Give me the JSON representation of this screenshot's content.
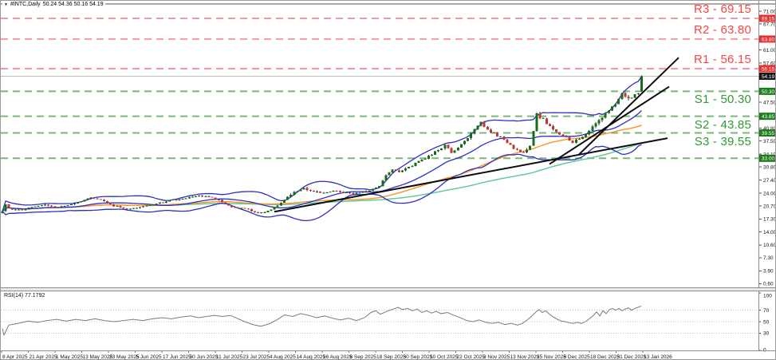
{
  "window": {
    "title_marker": "▼",
    "title_symbol": "#INTC,Daily",
    "title_ohlc": "50.24 54.36 50.16 54.19"
  },
  "colors": {
    "resistance_caption": "#f94545",
    "resistance_dash": "#f59a9a",
    "resistance_badge_bg": "#e53232",
    "support_caption": "#2e9b2e",
    "support_dash": "#79b879",
    "support_badge_bg": "#1d7d1d",
    "current_line": "#bdbdbd",
    "current_badge_bg": "#151515",
    "badge_text": "#ffffff",
    "candle_up": "#176d17",
    "candle_down": "#bf3737",
    "wick": "#3a3a3a",
    "bollinger": "#2e2ec4",
    "ma_fast": "#ff9224",
    "ma_slow": "#5cc795",
    "trendline": "#0d0d0d",
    "rsi_line": "#7a7a7a",
    "rsi_grid": "#c3c3c3",
    "axis_text": "#141414",
    "frame": "#8c8c8c"
  },
  "chart_data": {
    "type": "candlestick",
    "symbol": "#INTC",
    "timeframe": "Daily",
    "title": "#INTC,Daily 50.24 54.36 50.16 54.19",
    "ohlc_current": {
      "open": 50.24,
      "high": 54.36,
      "low": 50.16,
      "close": 54.19
    },
    "ylim": [
      0.6,
      71.0
    ],
    "y_ticks": [
      71.0,
      67.7,
      61.0,
      57.6,
      47.5,
      40.8,
      37.5,
      34.1,
      30.8,
      27.4,
      24.0,
      20.7,
      17.3,
      14.0,
      10.6,
      7.3,
      3.9,
      0.6
    ],
    "x_labels": [
      "8 Apr 2025",
      "21 Apr 2025",
      "1 May 2025",
      "13 May 2025",
      "23 May 2025",
      "5 Jun 2025",
      "17 Jun 2025",
      "30 Jun 2025",
      "11 Jul 2025",
      "23 Jul 2025",
      "4 Aug 2025",
      "14 Aug 2025",
      "26 Aug 2025",
      "8 Sep 2025",
      "18 Sep 2025",
      "30 Sep 2025",
      "10 Oct 2025",
      "22 Oct 2025",
      "3 Nov 2025",
      "13 Nov 2025",
      "25 Nov 2025",
      "8 Dec 2025",
      "18 Dec 2025",
      "31 Dec 2025",
      "13 Jan 2026"
    ],
    "levels": {
      "resistance": [
        {
          "name": "R3",
          "value": 69.15,
          "caption": "R3 - 69.15"
        },
        {
          "name": "R2",
          "value": 63.8,
          "caption": "R2 - 63.80"
        },
        {
          "name": "R1",
          "value": 56.15,
          "caption": "R1 - 56.15"
        }
      ],
      "support": [
        {
          "name": "S1",
          "value": 50.3,
          "caption": "S1 - 50.30"
        },
        {
          "name": "S2",
          "value": 43.85,
          "caption": "S2 - 43.85"
        },
        {
          "name": "S3",
          "value": 39.55,
          "caption": "S3 - 39.55"
        }
      ],
      "support_extra": 33.0,
      "current_price": 54.19
    },
    "bars_total": 196,
    "seed": 9,
    "price_keyframes": [
      [
        0,
        19.4
      ],
      [
        1,
        21.0
      ],
      [
        3,
        19.8
      ],
      [
        6,
        19.6
      ],
      [
        9,
        20.4
      ],
      [
        13,
        21.0
      ],
      [
        16,
        20.1
      ],
      [
        19,
        20.6
      ],
      [
        23,
        21.6
      ],
      [
        27,
        23.0
      ],
      [
        30,
        22.2
      ],
      [
        33,
        21.0
      ],
      [
        38,
        19.9
      ],
      [
        42,
        20.5
      ],
      [
        46,
        21.0
      ],
      [
        50,
        21.9
      ],
      [
        55,
        22.5
      ],
      [
        60,
        23.3
      ],
      [
        64,
        22.9
      ],
      [
        68,
        21.3
      ],
      [
        70,
        20.3
      ],
      [
        74,
        20.0
      ],
      [
        78,
        18.9
      ],
      [
        81,
        19.3
      ],
      [
        84,
        20.8
      ],
      [
        87,
        23.2
      ],
      [
        90,
        24.6
      ],
      [
        92,
        25.3
      ],
      [
        95,
        24.3
      ],
      [
        98,
        24.0
      ],
      [
        101,
        24.7
      ],
      [
        104,
        24.1
      ],
      [
        107,
        23.8
      ],
      [
        110,
        24.3
      ],
      [
        113,
        24.9
      ],
      [
        115,
        25.8
      ],
      [
        117,
        28.6
      ],
      [
        119,
        30.3
      ],
      [
        121,
        29.6
      ],
      [
        124,
        30.8
      ],
      [
        127,
        32.0
      ],
      [
        130,
        33.6
      ],
      [
        133,
        35.2
      ],
      [
        135,
        36.3
      ],
      [
        137,
        34.6
      ],
      [
        139,
        35.5
      ],
      [
        141,
        37.6
      ],
      [
        143,
        39.2
      ],
      [
        145,
        41.3
      ],
      [
        146,
        42.1
      ],
      [
        148,
        40.6
      ],
      [
        150,
        39.3
      ],
      [
        152,
        38.4
      ],
      [
        154,
        37.0
      ],
      [
        156,
        35.6
      ],
      [
        158,
        34.8
      ],
      [
        159,
        34.2
      ],
      [
        161,
        36.5
      ],
      [
        162,
        40.0
      ],
      [
        163,
        44.6
      ],
      [
        164,
        43.6
      ],
      [
        165,
        43.0
      ],
      [
        167,
        41.0
      ],
      [
        169,
        39.6
      ],
      [
        171,
        38.8
      ],
      [
        173,
        37.6
      ],
      [
        174,
        37.2
      ],
      [
        176,
        38.2
      ],
      [
        178,
        39.4
      ],
      [
        180,
        40.9
      ],
      [
        182,
        42.6
      ],
      [
        184,
        44.8
      ],
      [
        186,
        46.4
      ],
      [
        188,
        48.3
      ],
      [
        189,
        49.6
      ],
      [
        190,
        49.0
      ],
      [
        191,
        48.4
      ],
      [
        192,
        48.9
      ],
      [
        193,
        49.3
      ],
      [
        194,
        50.2
      ],
      [
        195,
        54.19
      ]
    ],
    "overlays": {
      "bollinger": {
        "period": 20,
        "deviation": 2
      },
      "ma_fast_period": 45,
      "ma_slow_period": 90
    },
    "trendlines": [
      {
        "points": [
          [
            343,
            19.2
          ],
          [
            836,
            38.2
          ]
        ],
        "width": 2
      },
      {
        "points": [
          [
            688,
            31.5
          ],
          [
            838,
            51.5
          ]
        ],
        "width": 2
      },
      {
        "points": [
          [
            724,
            33.8
          ],
          [
            850,
            59.0
          ]
        ],
        "width": 2
      }
    ],
    "rsi": {
      "label": "RSI(14) 77.1792",
      "period": 14,
      "value": 77.1792,
      "grid_levels": [
        70,
        50,
        30
      ],
      "axis_labels": [
        100,
        70,
        50,
        30,
        0
      ],
      "keyframes": [
        [
          2,
          38
        ],
        [
          4,
          27
        ],
        [
          10,
          44
        ],
        [
          22,
          47
        ],
        [
          34,
          51
        ],
        [
          46,
          49
        ],
        [
          58,
          52
        ],
        [
          70,
          54
        ],
        [
          82,
          51
        ],
        [
          94,
          54
        ],
        [
          106,
          52
        ],
        [
          118,
          55
        ],
        [
          130,
          52
        ],
        [
          142,
          50
        ],
        [
          154,
          52
        ],
        [
          166,
          54
        ],
        [
          178,
          52
        ],
        [
          190,
          55
        ],
        [
          202,
          57
        ],
        [
          214,
          55
        ],
        [
          226,
          58
        ],
        [
          238,
          60
        ],
        [
          248,
          57
        ],
        [
          258,
          59
        ],
        [
          268,
          61
        ],
        [
          278,
          59
        ],
        [
          288,
          61
        ],
        [
          296,
          56
        ],
        [
          306,
          50
        ],
        [
          316,
          45
        ],
        [
          326,
          42
        ],
        [
          336,
          46
        ],
        [
          346,
          53
        ],
        [
          356,
          62
        ],
        [
          366,
          59
        ],
        [
          376,
          64
        ],
        [
          386,
          61
        ],
        [
          396,
          57
        ],
        [
          406,
          60
        ],
        [
          416,
          56
        ],
        [
          426,
          53
        ],
        [
          436,
          56
        ],
        [
          446,
          52
        ],
        [
          456,
          57
        ],
        [
          464,
          66
        ],
        [
          470,
          69
        ],
        [
          476,
          63
        ],
        [
          484,
          68
        ],
        [
          492,
          72
        ],
        [
          498,
          75
        ],
        [
          504,
          71
        ],
        [
          510,
          73
        ],
        [
          516,
          69
        ],
        [
          522,
          72
        ],
        [
          528,
          66
        ],
        [
          534,
          69
        ],
        [
          540,
          65
        ],
        [
          546,
          68
        ],
        [
          552,
          64
        ],
        [
          560,
          66
        ],
        [
          568,
          61
        ],
        [
          576,
          57
        ],
        [
          584,
          52
        ],
        [
          592,
          50
        ],
        [
          600,
          53
        ],
        [
          608,
          49
        ],
        [
          616,
          47
        ],
        [
          624,
          49
        ],
        [
          632,
          45
        ],
        [
          640,
          47
        ],
        [
          648,
          44
        ],
        [
          654,
          47
        ],
        [
          660,
          53
        ],
        [
          666,
          60
        ],
        [
          671,
          67
        ],
        [
          675,
          71
        ],
        [
          679,
          66
        ],
        [
          683,
          69
        ],
        [
          688,
          63
        ],
        [
          693,
          58
        ],
        [
          698,
          54
        ],
        [
          703,
          51
        ],
        [
          708,
          50
        ],
        [
          713,
          48
        ],
        [
          718,
          47
        ],
        [
          723,
          49
        ],
        [
          728,
          47
        ],
        [
          733,
          50
        ],
        [
          738,
          55
        ],
        [
          743,
          61
        ],
        [
          747,
          67
        ],
        [
          751,
          60
        ],
        [
          755,
          69
        ],
        [
          759,
          64
        ],
        [
          763,
          71
        ],
        [
          767,
          73
        ],
        [
          771,
          70
        ],
        [
          775,
          73
        ],
        [
          779,
          69
        ],
        [
          783,
          72
        ],
        [
          787,
          74
        ],
        [
          791,
          70
        ],
        [
          795,
          73
        ],
        [
          799,
          75
        ],
        [
          803,
          77.2
        ]
      ]
    }
  }
}
